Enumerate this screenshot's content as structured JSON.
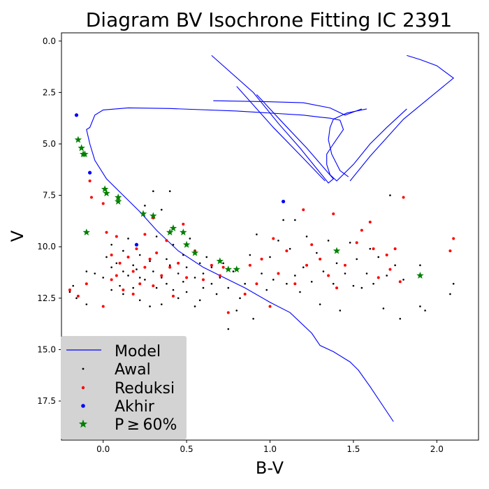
{
  "chart_data": {
    "type": "scatter",
    "title": "Diagram BV Isochrone Fitting IC 2391",
    "xlabel": "B-V",
    "ylabel": "V",
    "xlim": [
      -0.25,
      2.25
    ],
    "ylim": [
      19.4,
      -0.4
    ],
    "y_inverted": true,
    "grid": false,
    "legend_position": "lower-left",
    "x_ticks": [
      "0.0",
      "0.5",
      "1.0",
      "1.5",
      "2.0"
    ],
    "y_ticks": [
      "0.0",
      "2.5",
      "5.0",
      "7.5",
      "10.0",
      "12.5",
      "15.0",
      "17.5"
    ],
    "x_tick_values": [
      0.0,
      0.5,
      1.0,
      1.5,
      2.0
    ],
    "y_tick_values": [
      0.0,
      2.5,
      5.0,
      7.5,
      10.0,
      12.5,
      15.0,
      17.5
    ],
    "colors": {
      "model": "#0000ff",
      "awal": "#000000",
      "reduksi": "#ff0000",
      "akhir": "#0000ff",
      "p60": "#008000"
    },
    "legend": [
      "Model",
      "Awal",
      "Reduksi",
      "Akhir",
      "P ≥ 60%"
    ],
    "series": [
      {
        "name": "Model",
        "kind": "line",
        "points": [
          [
            1.74,
            18.5
          ],
          [
            1.6,
            16.8
          ],
          [
            1.53,
            16.0
          ],
          [
            1.48,
            15.6
          ],
          [
            1.38,
            15.1
          ],
          [
            1.3,
            14.8
          ],
          [
            1.25,
            14.2
          ],
          [
            1.12,
            13.2
          ],
          [
            1.0,
            12.7
          ],
          [
            0.85,
            12.0
          ],
          [
            0.75,
            11.6
          ],
          [
            0.6,
            11.0
          ],
          [
            0.45,
            10.2
          ],
          [
            0.32,
            9.2
          ],
          [
            0.22,
            8.3
          ],
          [
            0.12,
            7.5
          ],
          [
            0.02,
            6.7
          ],
          [
            -0.05,
            5.8
          ],
          [
            -0.08,
            5.0
          ],
          [
            -0.1,
            4.3
          ],
          [
            -0.08,
            4.2
          ],
          [
            -0.05,
            3.6
          ],
          [
            0.0,
            3.35
          ],
          [
            0.15,
            3.25
          ],
          [
            0.4,
            3.28
          ],
          [
            0.8,
            3.4
          ],
          [
            1.2,
            3.6
          ],
          [
            1.3,
            3.7
          ],
          [
            1.36,
            3.75
          ],
          [
            1.42,
            3.85
          ],
          [
            1.44,
            4.3
          ],
          [
            1.38,
            5.0
          ],
          [
            1.34,
            5.5
          ],
          [
            1.34,
            6.0
          ],
          [
            1.36,
            6.5
          ],
          [
            1.4,
            6.8
          ],
          [
            1.5,
            6.0
          ],
          [
            1.6,
            5.0
          ],
          [
            1.7,
            4.2
          ],
          [
            1.82,
            3.3
          ]
        ]
      },
      {
        "name": "Model",
        "kind": "line",
        "points": [
          [
            1.58,
            3.3
          ],
          [
            1.46,
            3.5
          ],
          [
            1.38,
            3.8
          ],
          [
            1.36,
            4.2
          ],
          [
            1.35,
            4.8
          ],
          [
            1.37,
            5.5
          ],
          [
            1.42,
            6.3
          ],
          [
            1.47,
            6.6
          ]
        ]
      },
      {
        "name": "Model",
        "kind": "line",
        "points": [
          [
            0.65,
            0.7
          ],
          [
            0.9,
            2.5
          ],
          [
            1.05,
            4.0
          ],
          [
            1.18,
            5.2
          ],
          [
            1.3,
            6.4
          ],
          [
            1.35,
            6.9
          ],
          [
            1.38,
            6.7
          ],
          [
            1.22,
            5.2
          ],
          [
            1.08,
            4.0
          ],
          [
            0.92,
            2.6
          ]
        ]
      },
      {
        "name": "Model",
        "kind": "line",
        "points": [
          [
            0.8,
            2.2
          ],
          [
            1.02,
            4.2
          ],
          [
            1.2,
            5.7
          ],
          [
            1.33,
            6.8
          ]
        ]
      },
      {
        "name": "Model",
        "kind": "line",
        "points": [
          [
            1.82,
            0.7
          ],
          [
            1.9,
            0.9
          ],
          [
            2.0,
            1.2
          ],
          [
            2.1,
            1.8
          ],
          [
            1.8,
            3.8
          ],
          [
            1.6,
            5.6
          ],
          [
            1.48,
            6.8
          ]
        ]
      },
      {
        "name": "Model",
        "kind": "line",
        "points": [
          [
            0.66,
            2.9
          ],
          [
            1.0,
            2.95
          ],
          [
            1.2,
            3.0
          ],
          [
            1.36,
            3.25
          ],
          [
            1.45,
            3.6
          ],
          [
            1.55,
            3.3
          ]
        ]
      },
      {
        "name": "Awal",
        "kind": "scatter",
        "points": [
          [
            -0.2,
            12.2
          ],
          [
            -0.18,
            11.9
          ],
          [
            -0.16,
            12.5
          ],
          [
            -0.1,
            11.2
          ],
          [
            -0.1,
            12.8
          ],
          [
            -0.05,
            11.3
          ],
          [
            0.0,
            11.5
          ],
          [
            0.02,
            10.5
          ],
          [
            0.05,
            11.0
          ],
          [
            0.05,
            12.1
          ],
          [
            0.08,
            10.8
          ],
          [
            0.1,
            11.9
          ],
          [
            0.12,
            10.2
          ],
          [
            0.12,
            12.3
          ],
          [
            0.15,
            9.6
          ],
          [
            0.15,
            11.4
          ],
          [
            0.18,
            10.9
          ],
          [
            0.18,
            12.0
          ],
          [
            0.2,
            11.1
          ],
          [
            0.22,
            10.4
          ],
          [
            0.22,
            12.6
          ],
          [
            0.25,
            11.6
          ],
          [
            0.25,
            8.0
          ],
          [
            0.28,
            10.7
          ],
          [
            0.28,
            12.9
          ],
          [
            0.3,
            7.3
          ],
          [
            0.3,
            11.2
          ],
          [
            0.32,
            12.0
          ],
          [
            0.32,
            9.5
          ],
          [
            0.35,
            11.5
          ],
          [
            0.35,
            8.2
          ],
          [
            0.35,
            12.8
          ],
          [
            0.38,
            10.6
          ],
          [
            0.38,
            11.8
          ],
          [
            0.4,
            7.3
          ],
          [
            0.4,
            10.9
          ],
          [
            0.42,
            12.1
          ],
          [
            0.42,
            9.9
          ],
          [
            0.45,
            11.3
          ],
          [
            0.45,
            12.5
          ],
          [
            0.48,
            10.4
          ],
          [
            0.48,
            11.7
          ],
          [
            0.5,
            11.0
          ],
          [
            0.5,
            12.2
          ],
          [
            0.52,
            9.6
          ],
          [
            0.55,
            11.5
          ],
          [
            0.55,
            12.9
          ],
          [
            0.58,
            10.8
          ],
          [
            0.6,
            11.3
          ],
          [
            0.6,
            12.0
          ],
          [
            0.62,
            10.5
          ],
          [
            0.65,
            11.8
          ],
          [
            0.65,
            11.0
          ],
          [
            0.68,
            12.3
          ],
          [
            0.7,
            11.5
          ],
          [
            0.72,
            10.8
          ],
          [
            0.75,
            12.0
          ],
          [
            0.75,
            14.0
          ],
          [
            0.78,
            11.2
          ],
          [
            0.8,
            13.1
          ],
          [
            0.82,
            12.5
          ],
          [
            0.85,
            11.8
          ],
          [
            0.88,
            10.4
          ],
          [
            0.9,
            13.5
          ],
          [
            0.92,
            9.4
          ],
          [
            0.95,
            11.3
          ],
          [
            0.98,
            12.1
          ],
          [
            1.0,
            10.5
          ],
          [
            1.02,
            11.6
          ],
          [
            1.05,
            9.7
          ],
          [
            1.08,
            8.7
          ],
          [
            1.1,
            11.8
          ],
          [
            1.12,
            10.1
          ],
          [
            1.15,
            11.4
          ],
          [
            1.15,
            8.7
          ],
          [
            1.18,
            12.2
          ],
          [
            1.2,
            11.0
          ],
          [
            1.22,
            9.5
          ],
          [
            1.25,
            11.7
          ],
          [
            1.28,
            10.3
          ],
          [
            1.3,
            12.8
          ],
          [
            1.32,
            11.2
          ],
          [
            1.35,
            9.7
          ],
          [
            1.38,
            11.8
          ],
          [
            1.4,
            10.8
          ],
          [
            1.42,
            13.1
          ],
          [
            1.45,
            11.3
          ],
          [
            1.48,
            9.8
          ],
          [
            1.5,
            11.9
          ],
          [
            1.52,
            10.6
          ],
          [
            1.55,
            12.0
          ],
          [
            1.58,
            11.3
          ],
          [
            1.6,
            10.1
          ],
          [
            1.62,
            11.8
          ],
          [
            1.65,
            10.5
          ],
          [
            1.68,
            13.0
          ],
          [
            1.7,
            11.4
          ],
          [
            1.72,
            7.5
          ],
          [
            1.75,
            10.9
          ],
          [
            1.78,
            13.5
          ],
          [
            1.8,
            11.6
          ],
          [
            1.9,
            10.9
          ],
          [
            1.9,
            12.9
          ],
          [
            1.93,
            13.1
          ],
          [
            2.08,
            12.3
          ],
          [
            2.1,
            11.8
          ],
          [
            0.58,
            12.6
          ],
          [
            0.12,
            11.2
          ],
          [
            0.22,
            11.5
          ],
          [
            0.05,
            9.9
          ]
        ]
      },
      {
        "name": "Reduksi",
        "kind": "scatter",
        "points": [
          [
            -0.2,
            12.1
          ],
          [
            -0.15,
            12.4
          ],
          [
            -0.1,
            11.8
          ],
          [
            -0.08,
            6.8
          ],
          [
            -0.07,
            7.6
          ],
          [
            0.0,
            7.9
          ],
          [
            0.0,
            12.9
          ],
          [
            0.02,
            9.3
          ],
          [
            0.05,
            10.4
          ],
          [
            0.05,
            11.6
          ],
          [
            0.08,
            9.5
          ],
          [
            0.1,
            10.8
          ],
          [
            0.12,
            12.1
          ],
          [
            0.15,
            10.5
          ],
          [
            0.18,
            11.2
          ],
          [
            0.2,
            10.1
          ],
          [
            0.22,
            11.8
          ],
          [
            0.25,
            9.4
          ],
          [
            0.25,
            11.0
          ],
          [
            0.28,
            10.6
          ],
          [
            0.3,
            8.6
          ],
          [
            0.3,
            11.9
          ],
          [
            0.32,
            10.3
          ],
          [
            0.35,
            11.4
          ],
          [
            0.38,
            9.7
          ],
          [
            0.4,
            11.0
          ],
          [
            0.42,
            12.4
          ],
          [
            0.45,
            10.8
          ],
          [
            0.48,
            8.9
          ],
          [
            0.5,
            11.5
          ],
          [
            0.55,
            10.2
          ],
          [
            0.6,
            11.6
          ],
          [
            0.65,
            10.9
          ],
          [
            0.7,
            11.4
          ],
          [
            0.75,
            13.2
          ],
          [
            0.8,
            11.1
          ],
          [
            0.85,
            12.3
          ],
          [
            0.88,
            10.9
          ],
          [
            0.92,
            11.8
          ],
          [
            0.95,
            10.6
          ],
          [
            1.0,
            12.9
          ],
          [
            1.02,
            9.6
          ],
          [
            1.05,
            11.3
          ],
          [
            1.1,
            10.2
          ],
          [
            1.15,
            11.8
          ],
          [
            1.2,
            8.2
          ],
          [
            1.22,
            10.9
          ],
          [
            1.25,
            9.9
          ],
          [
            1.3,
            10.6
          ],
          [
            1.35,
            11.4
          ],
          [
            1.38,
            8.4
          ],
          [
            1.4,
            12.0
          ],
          [
            1.45,
            10.9
          ],
          [
            1.52,
            9.8
          ],
          [
            1.55,
            9.2
          ],
          [
            1.6,
            8.8
          ],
          [
            1.62,
            10.1
          ],
          [
            1.65,
            11.5
          ],
          [
            1.7,
            10.4
          ],
          [
            1.72,
            11.1
          ],
          [
            1.75,
            10.1
          ],
          [
            1.78,
            11.7
          ],
          [
            1.8,
            7.6
          ],
          [
            2.08,
            10.2
          ],
          [
            2.1,
            9.6
          ],
          [
            0.72,
            11.0
          ],
          [
            0.18,
            12.3
          ],
          [
            0.08,
            11.4
          ]
        ]
      },
      {
        "name": "Akhir",
        "kind": "scatter",
        "points": [
          [
            -0.16,
            3.6
          ],
          [
            -0.08,
            6.4
          ],
          [
            0.2,
            9.9
          ],
          [
            1.08,
            7.8
          ]
        ]
      },
      {
        "name": "P ≥ 60%",
        "kind": "star",
        "points": [
          [
            -0.15,
            4.8
          ],
          [
            -0.13,
            5.2
          ],
          [
            -0.12,
            5.5
          ],
          [
            -0.11,
            5.5
          ],
          [
            -0.1,
            9.3
          ],
          [
            0.01,
            7.2
          ],
          [
            0.02,
            7.4
          ],
          [
            0.09,
            7.6
          ],
          [
            0.09,
            7.8
          ],
          [
            0.24,
            8.4
          ],
          [
            0.3,
            8.5
          ],
          [
            0.4,
            9.3
          ],
          [
            0.42,
            9.1
          ],
          [
            0.48,
            9.3
          ],
          [
            0.5,
            9.9
          ],
          [
            0.55,
            10.3
          ],
          [
            0.7,
            10.7
          ],
          [
            0.75,
            11.1
          ],
          [
            0.8,
            11.1
          ],
          [
            1.4,
            10.2
          ],
          [
            1.9,
            11.4
          ]
        ]
      }
    ]
  }
}
